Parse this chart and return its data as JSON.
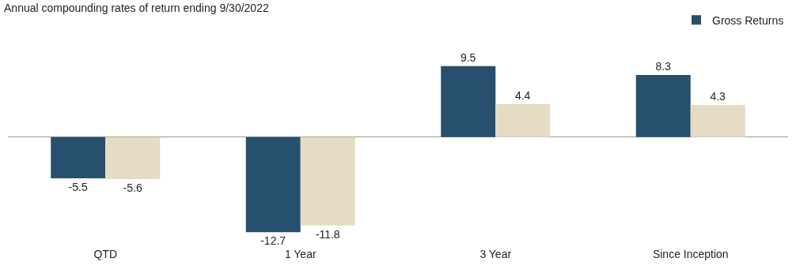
{
  "chart_data": {
    "type": "bar",
    "title": "Annual compounding rates of return ending 9/30/2022",
    "categories": [
      "QTD",
      "1 Year",
      "3 Year",
      "Since Inception"
    ],
    "series": [
      {
        "name": "Gross Returns",
        "color": "#27506e",
        "values": [
          -5.5,
          -12.7,
          9.5,
          8.3
        ]
      },
      {
        "color": "#e6dcc3",
        "values": [
          -5.6,
          -11.8,
          4.4,
          4.3
        ]
      }
    ],
    "data_labels": true,
    "tick_labels": "x",
    "grid": false,
    "legend": "top right"
  }
}
